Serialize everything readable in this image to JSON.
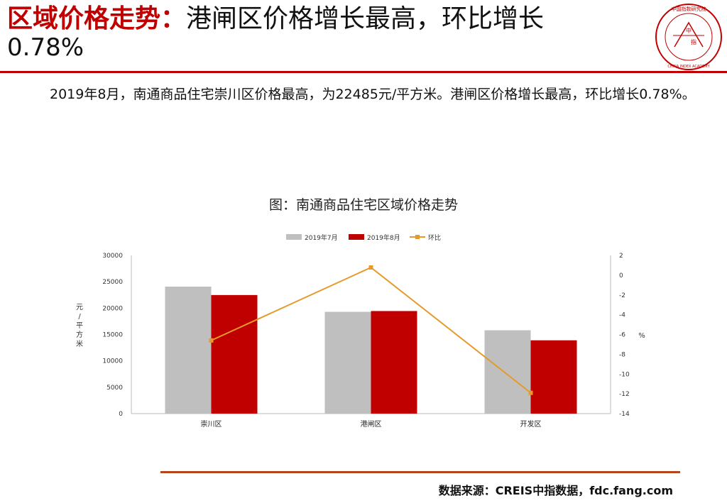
{
  "header": {
    "title_highlight": "区域价格走势：",
    "title_rest": "港闸区价格增长最高，环比增长",
    "title_pct": "0.78%"
  },
  "logo": {
    "name": "中国指数研究院",
    "english": "CHINA INDEX ACADEMY",
    "center_top": "中",
    "center_bottom": "指"
  },
  "summary": "2019年8月，南通商品住宅崇川区价格最高，为22485元/平方米。港闸区价格增长最高，环比增长0.78%。",
  "source": "数据来源：CREIS中指数据，fdc.fang.com",
  "colors": {
    "accent": "#c00000",
    "july": "#bfbfbf",
    "august": "#c00000",
    "mom": "#e59a2a"
  },
  "chart_data": {
    "type": "bar",
    "title": "图：南通商品住宅区域价格走势",
    "categories": [
      "崇川区",
      "港闸区",
      "开发区"
    ],
    "series": [
      {
        "name": "2019年7月",
        "type": "bar",
        "axis": "left",
        "values": [
          24080,
          19300,
          15800
        ]
      },
      {
        "name": "2019年8月",
        "type": "bar",
        "axis": "left",
        "values": [
          22485,
          19450,
          13900
        ]
      },
      {
        "name": "环比",
        "type": "line",
        "axis": "right",
        "values": [
          -6.6,
          0.78,
          -11.9
        ]
      }
    ],
    "ylabel": "元/平方米",
    "y2label": "%",
    "ylim": [
      0,
      30000
    ],
    "yticks": [
      0,
      5000,
      10000,
      15000,
      20000,
      25000,
      30000
    ],
    "y2lim": [
      -14,
      2
    ],
    "y2ticks": [
      2,
      0,
      -2,
      -4,
      -6,
      -8,
      -10,
      -12,
      -14
    ],
    "legend": "top",
    "grid": false
  }
}
